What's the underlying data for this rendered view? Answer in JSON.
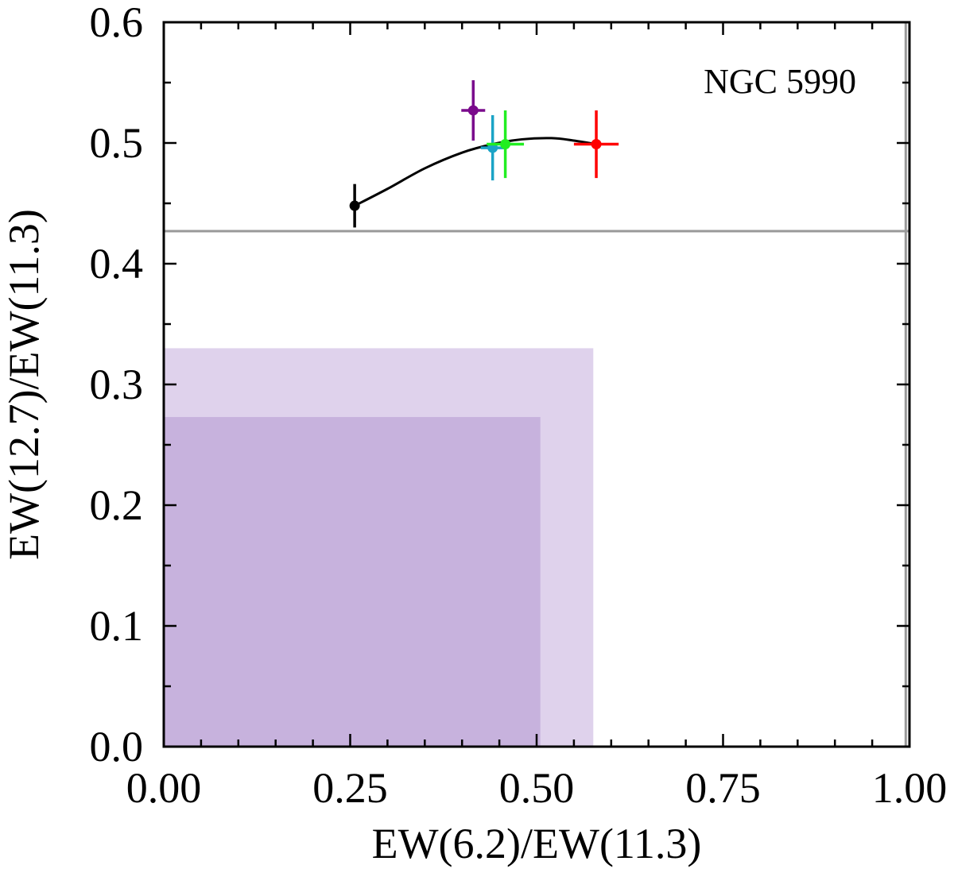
{
  "chart_data": {
    "type": "scatter",
    "title": "",
    "annotation": "NGC 5990",
    "xlabel": "EW(6.2)/EW(11.3)",
    "ylabel": "EW(12.7)/EW(11.3)",
    "xlim": [
      0.0,
      1.0
    ],
    "ylim": [
      0.0,
      0.6
    ],
    "xticks": [
      "0.00",
      "0.25",
      "0.50",
      "0.75",
      "1.00"
    ],
    "yticks": [
      "0.0",
      "0.1",
      "0.2",
      "0.3",
      "0.4",
      "0.5",
      "0.6"
    ],
    "x_tick_values": [
      0.0,
      0.25,
      0.5,
      0.75,
      1.0
    ],
    "y_tick_values": [
      0.0,
      0.1,
      0.2,
      0.3,
      0.4,
      0.5,
      0.6
    ],
    "x_minor_step": 0.05,
    "y_minor_step": 0.05,
    "grid": false,
    "regions": [
      {
        "x": [
          0.0,
          0.576
        ],
        "y": [
          0.0,
          0.33
        ],
        "color": "#dfd2ec"
      },
      {
        "x": [
          0.0,
          0.505
        ],
        "y": [
          0.0,
          0.273
        ],
        "color": "#c7b2dd"
      }
    ],
    "reference_lines": [
      {
        "orientation": "horizontal",
        "value": 0.427,
        "color": "#999999"
      },
      {
        "orientation": "vertical",
        "value": 0.995,
        "color": "#999999"
      }
    ],
    "curve": {
      "color": "#000000",
      "x": [
        0.256,
        0.3,
        0.35,
        0.4,
        0.441,
        0.48,
        0.52,
        0.55,
        0.58
      ],
      "y": [
        0.448,
        0.462,
        0.479,
        0.492,
        0.499,
        0.503,
        0.504,
        0.502,
        0.499
      ]
    },
    "points": [
      {
        "x": 0.256,
        "y": 0.448,
        "xerr": 0.0,
        "yerr": 0.018,
        "color": "#000000"
      },
      {
        "x": 0.415,
        "y": 0.527,
        "xerr": 0.016,
        "yerr": 0.025,
        "color": "#7a0a8c"
      },
      {
        "x": 0.441,
        "y": 0.496,
        "xerr": 0.016,
        "yerr": 0.027,
        "color": "#1ba3c6"
      },
      {
        "x": 0.458,
        "y": 0.499,
        "xerr": 0.025,
        "yerr": 0.028,
        "color": "#22ee22"
      },
      {
        "x": 0.58,
        "y": 0.499,
        "xerr": 0.03,
        "yerr": 0.028,
        "color": "#ff0000"
      }
    ]
  }
}
